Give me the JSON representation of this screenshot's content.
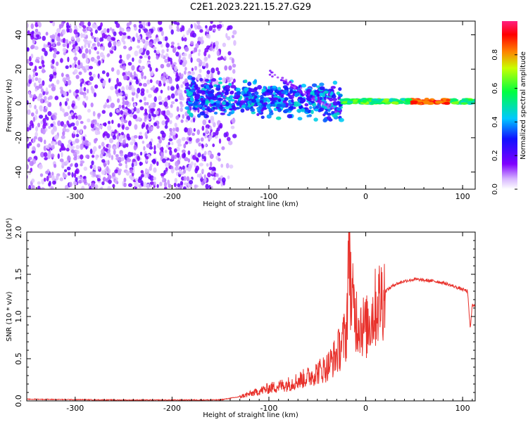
{
  "title": "C2E1.2023.221.15.27.G29",
  "colorbar": {
    "label": "Normalized spectral amplitude",
    "ticks": [
      "0.0",
      "0.2",
      "0.4",
      "0.6",
      "0.8"
    ]
  },
  "chart_data": [
    {
      "type": "heatmap",
      "xlabel": "Height of straight line (km)",
      "ylabel": "Frequency (Hz)",
      "xlim": [
        -350,
        113
      ],
      "ylim": [
        -50,
        48
      ],
      "x_ticks": [
        "-300",
        "-200",
        "-100",
        "0",
        "100"
      ],
      "y_ticks": [
        "-40",
        "-20",
        "0",
        "20",
        "40"
      ],
      "colormap": "rainbow (purple=0.0 to red=1.0)",
      "description_of_values": [
        {
          "x_range": [
            -350,
            -150
          ],
          "y_range": [
            -50,
            48
          ],
          "amplitude": 0.1
        },
        {
          "x_range": [
            -185,
            -25
          ],
          "y_range": [
            -6,
            12
          ],
          "amplitude": 0.35
        },
        {
          "x_range": [
            -25,
            113
          ],
          "y_range": [
            -2,
            3
          ],
          "amplitude": 0.7
        },
        {
          "x_range": [
            50,
            80
          ],
          "y_range": [
            0,
            2
          ],
          "amplitude": 1.0
        }
      ]
    },
    {
      "type": "line",
      "xlabel": "Height of straight line (km)",
      "ylabel": "SNR (10 * v/v)",
      "scale_label": "(x10⁴)",
      "xlim": [
        -350,
        113
      ],
      "ylim": [
        0,
        2.0
      ],
      "x_ticks": [
        "-300",
        "-200",
        "-100",
        "0",
        "100"
      ],
      "y_ticks": [
        "0.0",
        "0.5",
        "1.0",
        "1.5",
        "2.0"
      ],
      "series": [
        {
          "color": "#e8302a",
          "x": [
            -350,
            -300,
            -250,
            -200,
            -150,
            -130,
            -120,
            -100,
            -80,
            -60,
            -40,
            -30,
            -20,
            -17,
            -15,
            -10,
            0,
            10,
            20,
            30,
            40,
            50,
            60,
            70,
            80,
            90,
            100,
            105,
            108,
            110,
            113
          ],
          "y": [
            0.02,
            0.015,
            0.01,
            0.01,
            0.012,
            0.05,
            0.08,
            0.15,
            0.2,
            0.28,
            0.4,
            0.55,
            0.8,
            2.05,
            1.2,
            1.0,
            0.85,
            1.1,
            1.3,
            1.38,
            1.42,
            1.44,
            1.43,
            1.42,
            1.4,
            1.36,
            1.32,
            1.3,
            0.85,
            1.15,
            1.12
          ]
        }
      ]
    }
  ]
}
